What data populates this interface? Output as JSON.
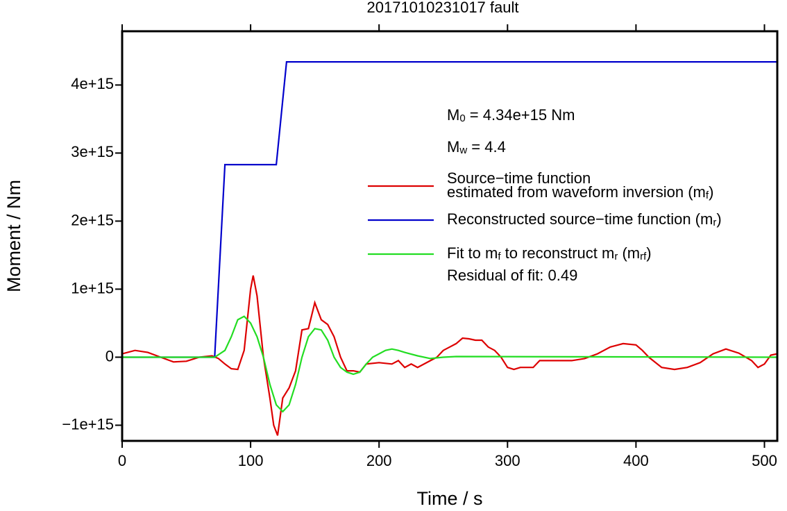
{
  "chart_data": {
    "type": "line",
    "title": "20171010231017 fault",
    "x_label": "Time / s",
    "y_label": "Moment / Nm",
    "xlim": [
      0,
      510
    ],
    "ylim": [
      -1230000000000000.0,
      4790000000000000.0
    ],
    "xticks": [
      0,
      100,
      200,
      300,
      400,
      500
    ],
    "yticks": [
      {
        "value": -1000000000000000.0,
        "label": "−1e+15"
      },
      0,
      {
        "value": 1000000000000000.0,
        "label": "1e+15"
      },
      {
        "value": 2000000000000000.0,
        "label": "2e+15"
      },
      {
        "value": 3000000000000000.0,
        "label": "3e+15"
      },
      {
        "value": 4000000000000000.0,
        "label": "4e+15"
      }
    ],
    "annotations": [
      [
        {
          "text": "M"
        },
        {
          "sub": "0"
        },
        {
          "text": " = 4.34e+15 Nm"
        }
      ],
      [
        {
          "text": "M"
        },
        {
          "sub": "w"
        },
        {
          "text": " = 4.4"
        }
      ],
      [
        {
          "text": "Residual of fit: 0.49"
        }
      ]
    ],
    "series": [
      {
        "name": [
          [
            {
              "text": "Source−time function"
            }
          ],
          [
            {
              "text": "estimated from waveform inversion (m"
            },
            {
              "sub": "f"
            },
            {
              "text": ")"
            }
          ]
        ],
        "color": "#dd0000",
        "x": [
          0,
          10,
          20,
          30,
          40,
          50,
          60,
          70,
          75,
          80,
          85,
          90,
          95,
          100,
          102,
          105,
          110,
          115,
          118,
          121,
          125,
          130,
          135,
          140,
          145,
          150,
          155,
          160,
          165,
          170,
          175,
          180,
          185,
          190,
          200,
          210,
          215,
          220,
          225,
          230,
          240,
          245,
          250,
          255,
          260,
          265,
          270,
          275,
          280,
          285,
          290,
          295,
          300,
          305,
          310,
          320,
          325,
          330,
          340,
          350,
          360,
          370,
          380,
          390,
          400,
          405,
          410,
          420,
          430,
          440,
          450,
          460,
          470,
          480,
          490,
          495,
          500,
          505,
          510
        ],
        "values": [
          50000000000000.0,
          100000000000000.0,
          70000000000000.0,
          0,
          -70000000000000.0,
          -60000000000000.0,
          0,
          20000000000000.0,
          -20000000000000.0,
          -100000000000000.0,
          -170000000000000.0,
          -180000000000000.0,
          100000000000000.0,
          1000000000000000.0,
          1200000000000000.0,
          900000000000000.0,
          0,
          -600000000000000.0,
          -1000000000000000.0,
          -1150000000000000.0,
          -600000000000000.0,
          -450000000000000.0,
          -200000000000000.0,
          400000000000000.0,
          420000000000000.0,
          800000000000000.0,
          550000000000000.0,
          480000000000000.0,
          300000000000000.0,
          0,
          -200000000000000.0,
          -200000000000000.0,
          -220000000000000.0,
          -100000000000000.0,
          -80000000000000.0,
          -100000000000000.0,
          -50000000000000.0,
          -150000000000000.0,
          -100000000000000.0,
          -150000000000000.0,
          -50000000000000.0,
          0,
          100000000000000.0,
          150000000000000.0,
          200000000000000.0,
          280000000000000.0,
          270000000000000.0,
          250000000000000.0,
          250000000000000.0,
          150000000000000.0,
          100000000000000.0,
          0,
          -150000000000000.0,
          -180000000000000.0,
          -150000000000000.0,
          -150000000000000.0,
          -50000000000000.0,
          -50000000000000.0,
          -50000000000000.0,
          -50000000000000.0,
          -20000000000000.0,
          50000000000000.0,
          150000000000000.0,
          200000000000000.0,
          180000000000000.0,
          100000000000000.0,
          0,
          -150000000000000.0,
          -180000000000000.0,
          -150000000000000.0,
          -80000000000000.0,
          50000000000000.0,
          120000000000000.0,
          60000000000000.0,
          -50000000000000.0,
          -150000000000000.0,
          -100000000000000.0,
          30000000000000.0,
          50000000000000.0
        ]
      },
      {
        "name": [
          [
            {
              "text": "Reconstructed source−time function (m"
            },
            {
              "sub": "r"
            },
            {
              "text": ")"
            }
          ]
        ],
        "color": "#0000cc",
        "x": [
          0,
          72,
          80,
          120,
          128,
          510
        ],
        "values": [
          0,
          0,
          2830000000000000.0,
          2830000000000000.0,
          4340000000000000.0,
          4340000000000000.0
        ]
      },
      {
        "name": [
          [
            {
              "text": "Fit to m"
            },
            {
              "sub": "f"
            },
            {
              "text": " to reconstruct m"
            },
            {
              "sub": "r"
            },
            {
              "text": " (m"
            },
            {
              "sub": "rf"
            },
            {
              "text": ")"
            }
          ]
        ],
        "color": "#22dd22",
        "x": [
          0,
          72,
          80,
          85,
          90,
          95,
          100,
          105,
          110,
          115,
          120,
          125,
          130,
          135,
          140,
          145,
          150,
          155,
          160,
          165,
          170,
          175,
          180,
          185,
          190,
          195,
          200,
          205,
          210,
          215,
          220,
          230,
          240,
          250,
          260,
          510
        ],
        "values": [
          0,
          0,
          100000000000000.0,
          300000000000000.0,
          550000000000000.0,
          600000000000000.0,
          500000000000000.0,
          300000000000000.0,
          0,
          -400000000000000.0,
          -700000000000000.0,
          -800000000000000.0,
          -700000000000000.0,
          -400000000000000.0,
          0,
          300000000000000.0,
          420000000000000.0,
          400000000000000.0,
          250000000000000.0,
          0,
          -150000000000000.0,
          -220000000000000.0,
          -250000000000000.0,
          -220000000000000.0,
          -100000000000000.0,
          0,
          50000000000000.0,
          100000000000000.0,
          120000000000000.0,
          100000000000000.0,
          70000000000000.0,
          20000000000000.0,
          -20000000000000.0,
          0,
          10000000000000.0,
          0
        ]
      }
    ]
  }
}
